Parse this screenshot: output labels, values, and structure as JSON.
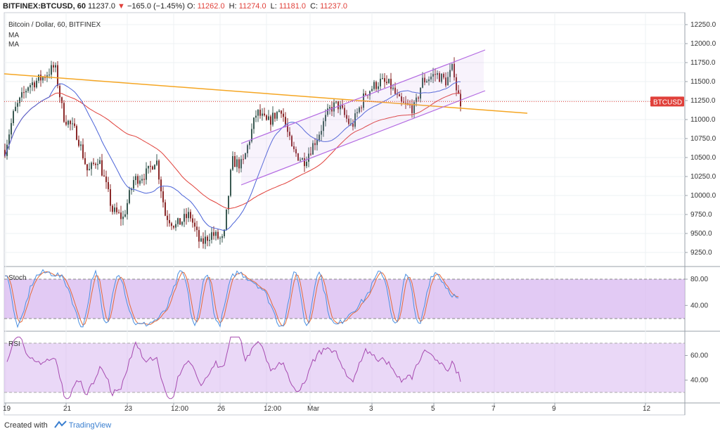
{
  "header": {
    "symbol": "BITFINEX:BTCUSD, 60",
    "last": "11237.0",
    "arrow": "▼",
    "change": "−165.0 (−1.45%)",
    "o_label": "O:",
    "o": "11262.0",
    "h_label": "H:",
    "h": "11274.0",
    "l_label": "L:",
    "l": "11181.0",
    "c_label": "C:",
    "c": "11237.0"
  },
  "legend": {
    "title": "Bitcoin / Dollar, 60, BITFINEX",
    "ma1": "MA",
    "ma2": "MA"
  },
  "price_tag": "BTCUSD",
  "stoch_label": "Stoch",
  "rsi_label": "RSI",
  "price_axis": [
    "12250.0",
    "12000.0",
    "11750.0",
    "11500.0",
    "11250.0",
    "11000.0",
    "10750.0",
    "10500.0",
    "10250.0",
    "10000.0",
    "9750.0",
    "9500.0",
    "9250.0"
  ],
  "stoch_axis": [
    "80.00",
    "40.00"
  ],
  "rsi_axis": [
    "60.00",
    "40.00"
  ],
  "time_axis": [
    "19",
    "21",
    "23",
    "12:00",
    "26",
    "12:00",
    "Mar",
    "3",
    "5",
    "7",
    "9",
    "12"
  ],
  "footer": {
    "created": "Created with",
    "brand": "TradingView"
  },
  "colors": {
    "up": "#3a5a52",
    "down": "#8b2a2a",
    "ma_blue": "#4a63d8",
    "ma_red": "#e0403a",
    "trend": "#f5a623",
    "channel": "#b36ae2",
    "stoch_k": "#4a90e2",
    "stoch_d": "#e36a3a",
    "rsi": "#a64ab0",
    "band": "#d8b8f0"
  },
  "chart_data": {
    "type": "candlestick",
    "series": [
      {
        "name": "BTCUSD",
        "values": []
      }
    ]
  }
}
